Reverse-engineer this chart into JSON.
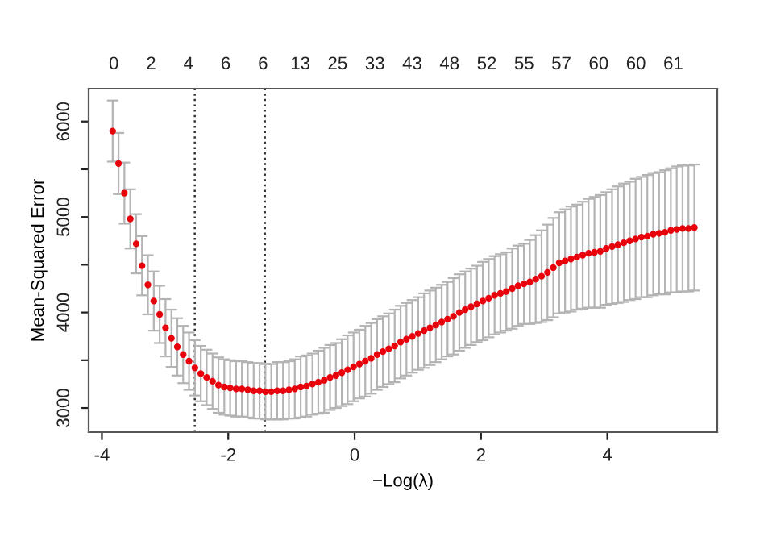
{
  "chart_data": {
    "type": "scatter",
    "xlabel": "−Log(λ)",
    "ylabel": "Mean-Squared Error",
    "xlim": [
      -4.21,
      5.74
    ],
    "ylim": [
      2747,
      6344
    ],
    "xticks": [
      -4,
      -2,
      0,
      2,
      4
    ],
    "yticks": [
      3000,
      {
        "value": 3500,
        "label": null
      },
      4000,
      {
        "value": 4500,
        "label": null
      },
      5000,
      {
        "value": 5500,
        "label": null
      },
      6000
    ],
    "annotations": [
      "0",
      "2",
      "4",
      "6",
      "6",
      "13",
      "25",
      "33",
      "43",
      "48",
      "52",
      "55",
      "57",
      "60",
      "60",
      "61"
    ],
    "marker": "circle",
    "grid": false,
    "ref_lines": [
      {
        "axis": "x",
        "value": -2.53,
        "line_style": "dotted",
        "color": "#333333"
      },
      {
        "axis": "x",
        "value": -1.42,
        "line_style": "dotted",
        "color": "#333333"
      }
    ],
    "series": [
      {
        "color": "#e8000b",
        "x": [
          -3.83,
          -3.737,
          -3.644,
          -3.551,
          -3.458,
          -3.365,
          -3.272,
          -3.179,
          -3.086,
          -2.993,
          -2.9,
          -2.807,
          -2.714,
          -2.621,
          -2.528,
          -2.435,
          -2.342,
          -2.249,
          -2.156,
          -2.063,
          -1.97,
          -1.877,
          -1.784,
          -1.691,
          -1.598,
          -1.505,
          -1.412,
          -1.319,
          -1.226,
          -1.133,
          -1.04,
          -0.947,
          -0.854,
          -0.761,
          -0.668,
          -0.575,
          -0.482,
          -0.389,
          -0.296,
          -0.203,
          -0.11,
          -0.017,
          0.076,
          0.169,
          0.262,
          0.355,
          0.448,
          0.541,
          0.634,
          0.727,
          0.82,
          0.913,
          1.006,
          1.099,
          1.192,
          1.285,
          1.378,
          1.471,
          1.564,
          1.657,
          1.75,
          1.843,
          1.936,
          2.029,
          2.122,
          2.215,
          2.308,
          2.401,
          2.494,
          2.587,
          2.68,
          2.773,
          2.866,
          2.959,
          3.052,
          3.145,
          3.238,
          3.331,
          3.424,
          3.517,
          3.61,
          3.703,
          3.796,
          3.889,
          3.982,
          4.075,
          4.168,
          4.261,
          4.354,
          4.447,
          4.54,
          4.633,
          4.726,
          4.819,
          4.912,
          5.005,
          5.098,
          5.191,
          5.284,
          5.377
        ],
        "values": [
          5900,
          5560,
          5250,
          4980,
          4720,
          4490,
          4290,
          4120,
          3980,
          3840,
          3730,
          3640,
          3560,
          3490,
          3420,
          3360,
          3320,
          3280,
          3240,
          3220,
          3210,
          3200,
          3200,
          3190,
          3180,
          3180,
          3170,
          3170,
          3180,
          3180,
          3190,
          3200,
          3220,
          3230,
          3250,
          3270,
          3290,
          3320,
          3340,
          3370,
          3400,
          3430,
          3460,
          3490,
          3520,
          3560,
          3590,
          3620,
          3650,
          3690,
          3720,
          3750,
          3780,
          3810,
          3840,
          3870,
          3900,
          3930,
          3960,
          4000,
          4030,
          4060,
          4090,
          4120,
          4150,
          4180,
          4200,
          4220,
          4250,
          4280,
          4300,
          4320,
          4350,
          4380,
          4420,
          4470,
          4520,
          4540,
          4560,
          4580,
          4600,
          4620,
          4630,
          4640,
          4670,
          4690,
          4710,
          4730,
          4750,
          4770,
          4790,
          4800,
          4820,
          4830,
          4840,
          4860,
          4870,
          4880,
          4880,
          4890
        ],
        "errors": [
          320,
          320,
          320,
          310,
          310,
          310,
          310,
          310,
          300,
          300,
          300,
          300,
          300,
          300,
          290,
          290,
          290,
          290,
          290,
          290,
          290,
          290,
          290,
          290,
          290,
          290,
          290,
          290,
          300,
          300,
          300,
          310,
          320,
          320,
          320,
          330,
          340,
          340,
          340,
          350,
          360,
          360,
          360,
          370,
          370,
          370,
          370,
          370,
          380,
          380,
          380,
          380,
          380,
          390,
          390,
          390,
          390,
          390,
          400,
          400,
          400,
          400,
          400,
          410,
          410,
          410,
          410,
          410,
          420,
          420,
          420,
          440,
          460,
          480,
          500,
          520,
          530,
          540,
          550,
          550,
          560,
          570,
          580,
          590,
          590,
          600,
          610,
          620,
          620,
          630,
          630,
          640,
          640,
          640,
          650,
          650,
          660,
          660,
          660,
          660
        ]
      }
    ]
  }
}
